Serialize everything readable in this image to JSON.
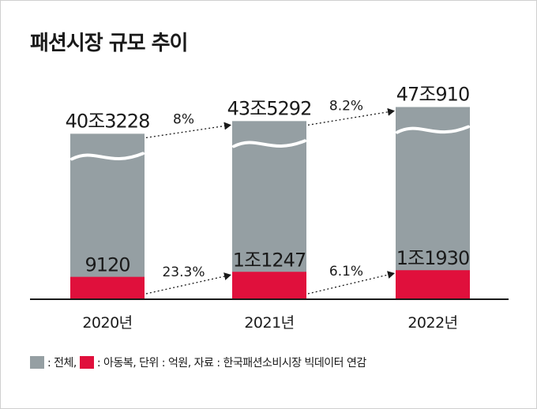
{
  "chart_data": {
    "type": "bar",
    "title": "패션시장 규모 추이",
    "categories": [
      "2020년",
      "2021년",
      "2022년"
    ],
    "series": [
      {
        "name": "전체",
        "values": [
          403228,
          435292,
          470910
        ],
        "labels": [
          "40조3228",
          "43조5292",
          "47조910"
        ],
        "color": "#959fa3"
      },
      {
        "name": "아동복",
        "values": [
          9120,
          11247,
          11930
        ],
        "labels": [
          "9120",
          "1조1247",
          "1조1930"
        ],
        "color": "#e0103c"
      }
    ],
    "growth": {
      "total": [
        "8%",
        "8.2%"
      ],
      "kids": [
        "23.3%",
        "6.1%"
      ]
    },
    "axis_break": true
  },
  "legend": {
    "total_label": ": 전체,",
    "kids_label": ": 아동복, 단위 : 억원, 자료 : 한국패션소비시장 빅데이터 연감"
  }
}
